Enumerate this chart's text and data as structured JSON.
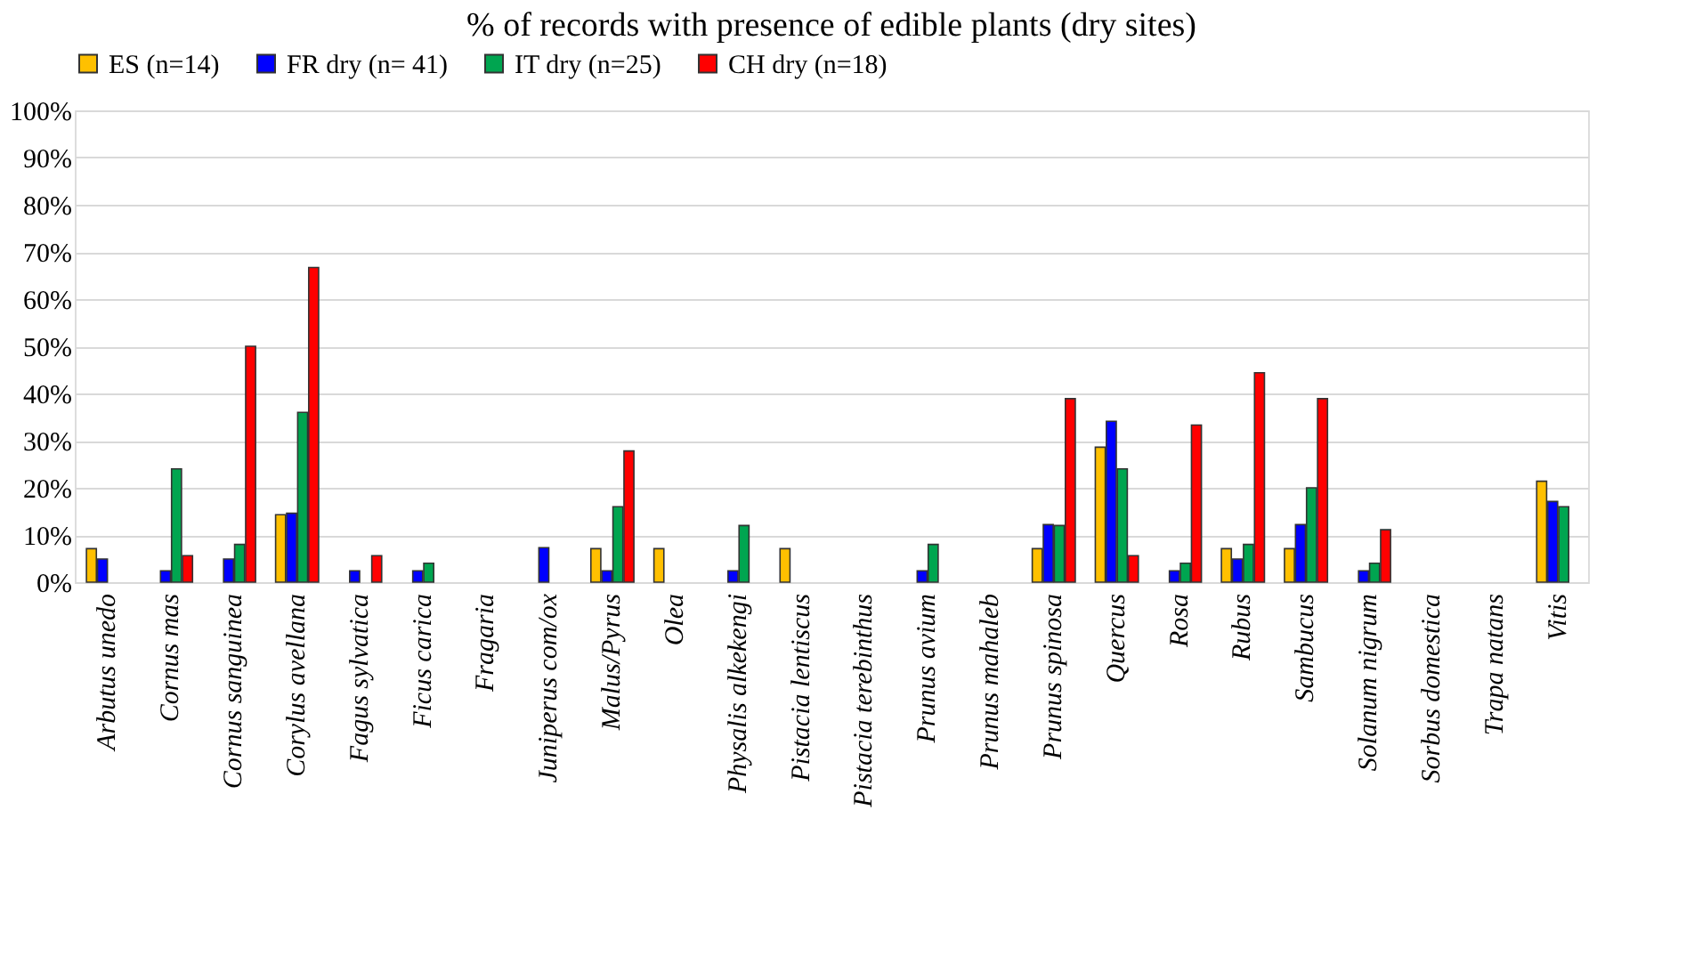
{
  "chart_data": {
    "type": "bar",
    "title": "% of records with presence of edible plants (dry sites)",
    "categories": [
      "Arbutus unedo",
      "Cornus mas",
      "Cornus sanguinea",
      "Corylus avellana",
      "Fagus sylvatica",
      "Ficus carica",
      "Fragaria",
      "Juniperus com/ox",
      "Malus/Pyrus",
      "Olea",
      "Physalis alkekengi",
      "Pistacia lentiscus",
      "Pistacia terebinthus",
      "Prunus avium",
      "Prunus mahaleb",
      "Prunus spinosa",
      "Quercus",
      "Rosa",
      "Rubus",
      "Sambucus",
      "Solanum nigrum",
      "Sorbus domestica",
      "Trapa natans",
      "Vitis"
    ],
    "series": [
      {
        "name": "ES (n=14)",
        "color": "#ffc000",
        "values": [
          7.1,
          null,
          null,
          14.3,
          null,
          null,
          null,
          null,
          7.1,
          7.1,
          null,
          7.1,
          null,
          null,
          null,
          7.1,
          28.6,
          null,
          7.1,
          7.1,
          null,
          null,
          null,
          21.4
        ]
      },
      {
        "name": "FR dry (n= 41)",
        "color": "#0000ff",
        "values": [
          4.9,
          2.4,
          4.9,
          14.6,
          2.4,
          2.4,
          null,
          7.3,
          2.4,
          null,
          2.4,
          null,
          null,
          2.4,
          null,
          12.2,
          34.1,
          2.4,
          4.9,
          12.2,
          2.4,
          null,
          null,
          17.1
        ]
      },
      {
        "name": "IT dry (n=25)",
        "color": "#00a550",
        "values": [
          null,
          24,
          8,
          36,
          null,
          4,
          null,
          null,
          16,
          null,
          12,
          null,
          null,
          8,
          null,
          12,
          24,
          4,
          8,
          20,
          4,
          null,
          null,
          16
        ]
      },
      {
        "name": "CH dry (n=18)",
        "color": "#ff0000",
        "values": [
          null,
          5.6,
          50,
          66.7,
          5.6,
          null,
          null,
          null,
          27.8,
          null,
          null,
          null,
          null,
          null,
          null,
          38.9,
          5.6,
          33.3,
          44.4,
          38.9,
          11.1,
          null,
          null,
          null
        ]
      }
    ],
    "ylim": [
      0,
      100
    ],
    "yticks": [
      {
        "value": 0,
        "label": "0%"
      },
      {
        "value": 10,
        "label": "10%"
      },
      {
        "value": 20,
        "label": "20%"
      },
      {
        "value": 30,
        "label": "30%"
      },
      {
        "value": 40,
        "label": "40%"
      },
      {
        "value": 50,
        "label": "50%"
      },
      {
        "value": 60,
        "label": "60%"
      },
      {
        "value": 70,
        "label": "70%"
      },
      {
        "value": 80,
        "label": "80%"
      },
      {
        "value": 90,
        "label": "90%"
      },
      {
        "value": 100,
        "label": "100%"
      }
    ],
    "grid": "y",
    "legend": "top"
  }
}
